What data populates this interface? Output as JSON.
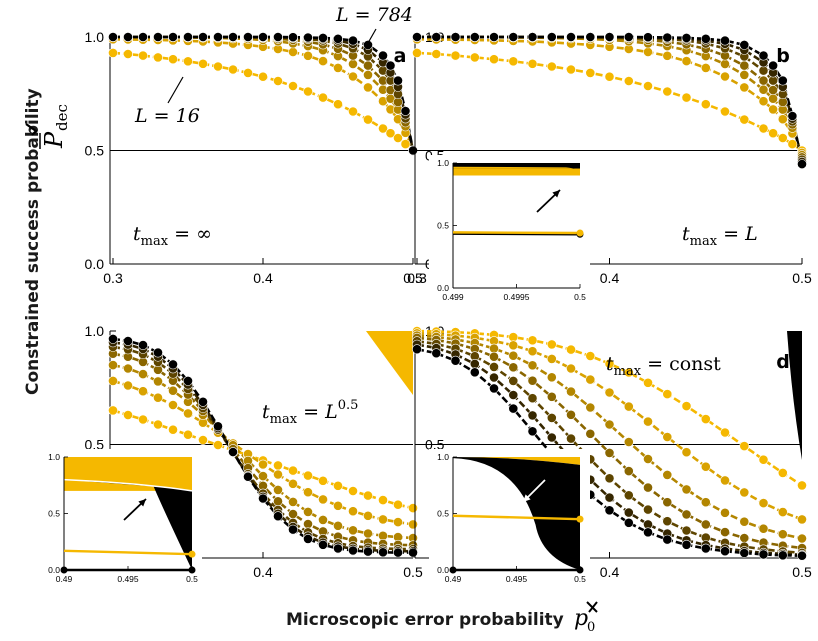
{
  "colors": {
    "series": [
      "#f5b800",
      "#d9a200",
      "#b38600",
      "#8a6600",
      "#5e4500",
      "#352600",
      "#000000"
    ],
    "accent_yellow": "#f5b800"
  },
  "figure": {
    "ylabel": "Constrained success probability",
    "ylabel_math": "P",
    "ylabel_sub": "dec",
    "xlabel": "Microscopic error probability",
    "xlabel_math": "p",
    "xlabel_sub": "0",
    "label_L_large": "L = 784",
    "label_L_small": "L = 16"
  },
  "chart_data": [
    {
      "id": "a",
      "type": "line",
      "panel_label": "a",
      "tmax_label": "t_max = ∞",
      "xlim": [
        0.3,
        0.5
      ],
      "ylim": [
        0.0,
        1.0
      ],
      "x_ticks": [
        "0.3",
        "0.4",
        "0.5"
      ],
      "y_ticks": [
        "0.0",
        "0.5",
        "1.0"
      ],
      "reference_line": 0.5,
      "x": [
        0.3,
        0.31,
        0.32,
        0.33,
        0.34,
        0.35,
        0.36,
        0.37,
        0.38,
        0.39,
        0.4,
        0.41,
        0.42,
        0.43,
        0.44,
        0.45,
        0.46,
        0.47,
        0.48,
        0.485,
        0.49,
        0.495,
        0.5
      ],
      "series": [
        {
          "name": "L = 16",
          "values": [
            0.93,
            0.925,
            0.918,
            0.91,
            0.902,
            0.893,
            0.882,
            0.87,
            0.857,
            0.842,
            0.825,
            0.806,
            0.784,
            0.76,
            0.733,
            0.704,
            0.672,
            0.636,
            0.597,
            0.576,
            0.555,
            0.528,
            0.5
          ]
        },
        {
          "values": [
            0.99,
            0.989,
            0.988,
            0.987,
            0.985,
            0.983,
            0.98,
            0.976,
            0.971,
            0.965,
            0.957,
            0.947,
            0.934,
            0.917,
            0.894,
            0.864,
            0.826,
            0.778,
            0.717,
            0.681,
            0.638,
            0.578,
            0.5
          ]
        },
        {
          "values": [
            1.0,
            1.0,
            1.0,
            0.999,
            0.999,
            0.998,
            0.997,
            0.996,
            0.994,
            0.991,
            0.987,
            0.981,
            0.972,
            0.96,
            0.942,
            0.916,
            0.881,
            0.833,
            0.768,
            0.728,
            0.68,
            0.606,
            0.5
          ]
        },
        {
          "values": [
            1.0,
            1.0,
            1.0,
            1.0,
            1.0,
            1.0,
            1.0,
            0.999,
            0.998,
            0.997,
            0.995,
            0.992,
            0.987,
            0.979,
            0.967,
            0.948,
            0.918,
            0.874,
            0.808,
            0.766,
            0.713,
            0.624,
            0.5
          ]
        },
        {
          "values": [
            1.0,
            1.0,
            1.0,
            1.0,
            1.0,
            1.0,
            1.0,
            1.0,
            1.0,
            0.999,
            0.998,
            0.997,
            0.995,
            0.991,
            0.984,
            0.971,
            0.95,
            0.914,
            0.852,
            0.808,
            0.748,
            0.641,
            0.5
          ]
        },
        {
          "values": [
            1.0,
            1.0,
            1.0,
            1.0,
            1.0,
            1.0,
            1.0,
            1.0,
            1.0,
            1.0,
            1.0,
            0.999,
            0.998,
            0.996,
            0.992,
            0.984,
            0.97,
            0.943,
            0.888,
            0.843,
            0.78,
            0.658,
            0.5
          ]
        },
        {
          "name": "L = 784",
          "values": [
            1.0,
            1.0,
            1.0,
            1.0,
            1.0,
            1.0,
            1.0,
            1.0,
            1.0,
            1.0,
            1.0,
            1.0,
            0.999,
            0.998,
            0.996,
            0.992,
            0.984,
            0.965,
            0.918,
            0.874,
            0.808,
            0.674,
            0.5
          ]
        }
      ]
    },
    {
      "id": "b",
      "type": "line",
      "panel_label": "b",
      "tmax_label": "t_max = L",
      "xlim": [
        0.3,
        0.5
      ],
      "ylim": [
        0.0,
        1.0
      ],
      "x_ticks": [
        "0.3",
        "0.4",
        "0.5"
      ],
      "y_ticks": [
        "0.0",
        "0.5",
        "1.0"
      ],
      "reference_line": 0.5,
      "x": [
        0.3,
        0.31,
        0.32,
        0.33,
        0.34,
        0.35,
        0.36,
        0.37,
        0.38,
        0.39,
        0.4,
        0.41,
        0.42,
        0.43,
        0.44,
        0.45,
        0.46,
        0.47,
        0.48,
        0.485,
        0.49,
        0.495,
        0.5
      ],
      "series": [
        {
          "values": [
            0.93,
            0.925,
            0.918,
            0.91,
            0.902,
            0.893,
            0.882,
            0.87,
            0.857,
            0.842,
            0.825,
            0.806,
            0.784,
            0.76,
            0.733,
            0.704,
            0.672,
            0.636,
            0.597,
            0.576,
            0.555,
            0.528,
            0.5
          ]
        },
        {
          "values": [
            0.99,
            0.989,
            0.988,
            0.987,
            0.985,
            0.983,
            0.98,
            0.976,
            0.971,
            0.965,
            0.957,
            0.947,
            0.934,
            0.917,
            0.894,
            0.864,
            0.826,
            0.778,
            0.717,
            0.681,
            0.638,
            0.575,
            0.49
          ]
        },
        {
          "values": [
            1.0,
            1.0,
            1.0,
            0.999,
            0.999,
            0.998,
            0.997,
            0.996,
            0.994,
            0.991,
            0.987,
            0.981,
            0.972,
            0.96,
            0.942,
            0.916,
            0.881,
            0.833,
            0.768,
            0.728,
            0.68,
            0.6,
            0.48
          ]
        },
        {
          "values": [
            1.0,
            1.0,
            1.0,
            1.0,
            1.0,
            1.0,
            1.0,
            0.999,
            0.998,
            0.997,
            0.995,
            0.992,
            0.987,
            0.979,
            0.967,
            0.948,
            0.918,
            0.874,
            0.808,
            0.766,
            0.713,
            0.615,
            0.47
          ]
        },
        {
          "values": [
            1.0,
            1.0,
            1.0,
            1.0,
            1.0,
            1.0,
            1.0,
            1.0,
            1.0,
            0.999,
            0.998,
            0.997,
            0.995,
            0.991,
            0.984,
            0.971,
            0.95,
            0.914,
            0.852,
            0.808,
            0.748,
            0.628,
            0.46
          ]
        },
        {
          "values": [
            1.0,
            1.0,
            1.0,
            1.0,
            1.0,
            1.0,
            1.0,
            1.0,
            1.0,
            1.0,
            1.0,
            0.999,
            0.998,
            0.996,
            0.992,
            0.984,
            0.97,
            0.943,
            0.888,
            0.843,
            0.78,
            0.64,
            0.45
          ]
        },
        {
          "values": [
            1.0,
            1.0,
            1.0,
            1.0,
            1.0,
            1.0,
            1.0,
            1.0,
            1.0,
            1.0,
            1.0,
            1.0,
            0.999,
            0.998,
            0.996,
            0.992,
            0.984,
            0.965,
            0.918,
            0.874,
            0.808,
            0.652,
            0.44
          ]
        }
      ],
      "inset": {
        "xlim": [
          0.499,
          0.5
        ],
        "ylim": [
          0.0,
          1.0
        ],
        "x_ticks": [
          "0.499",
          "0.4995",
          "0.5"
        ],
        "y_ticks": [
          "0.0",
          "0.5",
          "1.0"
        ],
        "yellow_line_y": [
          0.445,
          0.44
        ],
        "black_line_y": [
          0.435,
          0.43
        ],
        "band_low_y": 0.95,
        "band_low_end_y": 0.93,
        "arrow": "up-right"
      }
    },
    {
      "id": "c",
      "type": "line",
      "panel_label": "c",
      "tmax_label": "t_max = L^0.5",
      "xlim": [
        0.3,
        0.5
      ],
      "ylim": [
        0.0,
        1.0
      ],
      "x_ticks": [
        "0.4",
        "0.5"
      ],
      "y_ticks": [
        "0.5",
        "1.0"
      ],
      "reference_line": 0.5,
      "x": [
        0.3,
        0.31,
        0.32,
        0.33,
        0.34,
        0.35,
        0.36,
        0.37,
        0.38,
        0.39,
        0.4,
        0.41,
        0.42,
        0.43,
        0.44,
        0.45,
        0.46,
        0.47,
        0.48,
        0.49,
        0.5
      ],
      "series": [
        {
          "values": [
            0.65,
            0.63,
            0.61,
            0.588,
            0.565,
            0.543,
            0.52,
            0.498,
            0.475,
            0.453,
            0.43,
            0.408,
            0.385,
            0.363,
            0.34,
            0.318,
            0.295,
            0.275,
            0.255,
            0.235,
            0.22
          ]
        },
        {
          "values": [
            0.78,
            0.76,
            0.735,
            0.706,
            0.674,
            0.637,
            0.596,
            0.552,
            0.505,
            0.458,
            0.412,
            0.368,
            0.327,
            0.29,
            0.258,
            0.23,
            0.206,
            0.186,
            0.17,
            0.158,
            0.148
          ]
        },
        {
          "values": [
            0.85,
            0.835,
            0.81,
            0.778,
            0.737,
            0.688,
            0.63,
            0.566,
            0.497,
            0.428,
            0.361,
            0.3,
            0.247,
            0.203,
            0.168,
            0.142,
            0.122,
            0.108,
            0.098,
            0.092,
            0.088
          ]
        },
        {
          "values": [
            0.9,
            0.887,
            0.864,
            0.829,
            0.781,
            0.72,
            0.647,
            0.566,
            0.48,
            0.396,
            0.318,
            0.25,
            0.194,
            0.15,
            0.117,
            0.094,
            0.078,
            0.068,
            0.062,
            0.058,
            0.056
          ]
        },
        {
          "values": [
            0.93,
            0.919,
            0.898,
            0.863,
            0.812,
            0.744,
            0.66,
            0.565,
            0.466,
            0.37,
            0.284,
            0.212,
            0.155,
            0.113,
            0.084,
            0.065,
            0.053,
            0.046,
            0.042,
            0.04,
            0.039
          ]
        },
        {
          "values": [
            0.95,
            0.94,
            0.921,
            0.887,
            0.835,
            0.764,
            0.674,
            0.572,
            0.465,
            0.362,
            0.27,
            0.195,
            0.137,
            0.095,
            0.068,
            0.051,
            0.041,
            0.035,
            0.032,
            0.03,
            0.03
          ]
        },
        {
          "values": [
            0.965,
            0.956,
            0.938,
            0.905,
            0.853,
            0.78,
            0.688,
            0.58,
            0.467,
            0.358,
            0.262,
            0.184,
            0.125,
            0.084,
            0.058,
            0.042,
            0.033,
            0.028,
            0.025,
            0.024,
            0.024
          ]
        }
      ],
      "inset": {
        "xlim": [
          0.49,
          0.5
        ],
        "ylim": [
          0.0,
          1.0
        ],
        "x_ticks": [
          "0.49",
          "0.495",
          "0.5"
        ],
        "y_ticks": [
          "0.0",
          "0.5",
          "1.0"
        ],
        "yellow_line_y": [
          0.17,
          0.14
        ],
        "black_line_y": [
          0.0,
          0.0
        ],
        "arrow": "up-right"
      }
    },
    {
      "id": "d",
      "type": "line",
      "panel_label": "d",
      "tmax_label": "t_max = const",
      "xlim": [
        0.3,
        0.5
      ],
      "ylim": [
        0.0,
        1.0
      ],
      "x_ticks": [
        "0.4",
        "0.5"
      ],
      "y_ticks": [
        "0.5",
        "1.0"
      ],
      "reference_line": 0.5,
      "x": [
        0.3,
        0.31,
        0.32,
        0.33,
        0.34,
        0.35,
        0.36,
        0.37,
        0.38,
        0.39,
        0.4,
        0.41,
        0.42,
        0.43,
        0.44,
        0.45,
        0.46,
        0.47,
        0.48,
        0.49,
        0.5
      ],
      "series": [
        {
          "values": [
            1.0,
            0.998,
            0.995,
            0.99,
            0.983,
            0.973,
            0.959,
            0.941,
            0.918,
            0.89,
            0.856,
            0.817,
            0.772,
            0.722,
            0.669,
            0.612,
            0.553,
            0.493,
            0.433,
            0.375,
            0.32
          ]
        },
        {
          "values": [
            0.99,
            0.986,
            0.98,
            0.97,
            0.956,
            0.937,
            0.911,
            0.877,
            0.835,
            0.786,
            0.729,
            0.667,
            0.601,
            0.533,
            0.466,
            0.402,
            0.342,
            0.289,
            0.242,
            0.202,
            0.17
          ]
        },
        {
          "values": [
            0.98,
            0.974,
            0.963,
            0.947,
            0.923,
            0.891,
            0.849,
            0.796,
            0.733,
            0.663,
            0.588,
            0.511,
            0.436,
            0.366,
            0.302,
            0.246,
            0.199,
            0.16,
            0.129,
            0.105,
            0.086
          ]
        },
        {
          "values": [
            0.97,
            0.961,
            0.945,
            0.921,
            0.887,
            0.84,
            0.781,
            0.71,
            0.631,
            0.547,
            0.463,
            0.383,
            0.31,
            0.246,
            0.192,
            0.148,
            0.114,
            0.088,
            0.068,
            0.054,
            0.044
          ]
        },
        {
          "values": [
            0.955,
            0.943,
            0.922,
            0.889,
            0.842,
            0.78,
            0.704,
            0.617,
            0.526,
            0.435,
            0.351,
            0.276,
            0.213,
            0.162,
            0.121,
            0.09,
            0.067,
            0.05,
            0.038,
            0.029,
            0.023
          ]
        },
        {
          "values": [
            0.94,
            0.925,
            0.897,
            0.855,
            0.795,
            0.718,
            0.628,
            0.531,
            0.435,
            0.345,
            0.266,
            0.2,
            0.148,
            0.108,
            0.078,
            0.057,
            0.042,
            0.031,
            0.023,
            0.018,
            0.014
          ]
        },
        {
          "values": [
            0.92,
            0.902,
            0.869,
            0.818,
            0.747,
            0.658,
            0.558,
            0.457,
            0.362,
            0.279,
            0.21,
            0.155,
            0.113,
            0.081,
            0.058,
            0.042,
            0.03,
            0.022,
            0.016,
            0.012,
            0.01
          ]
        }
      ],
      "inset": {
        "xlim": [
          0.49,
          0.5
        ],
        "ylim": [
          0.0,
          1.0
        ],
        "x_ticks": [
          "0.49",
          "0.495",
          "0.5"
        ],
        "y_ticks": [
          "0.0",
          "0.5",
          "1.0"
        ],
        "yellow_line_y": [
          0.48,
          0.45
        ],
        "black_line_y": [
          0.0,
          0.0
        ],
        "arrow": "down-left"
      }
    }
  ]
}
